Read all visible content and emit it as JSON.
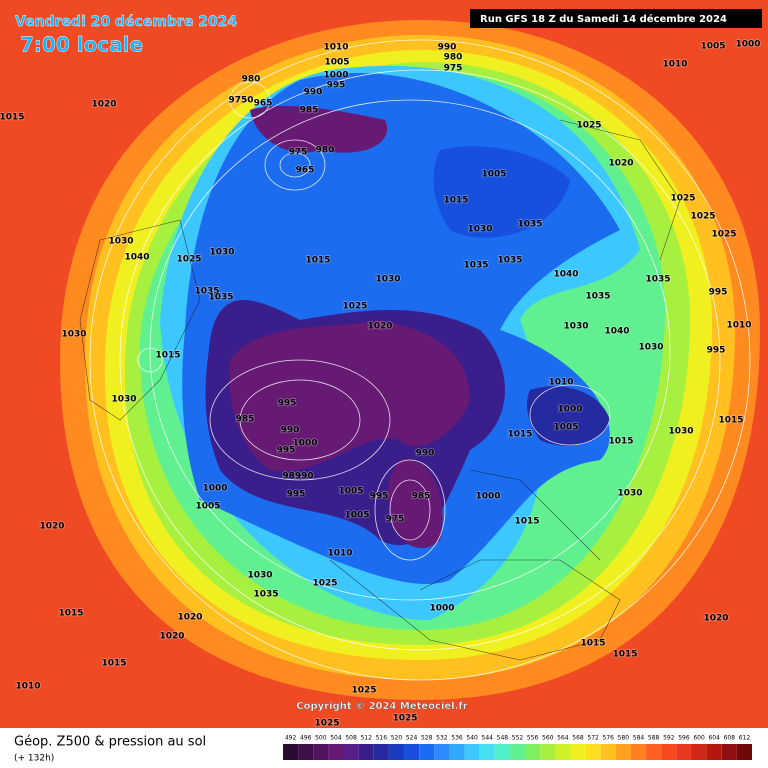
{
  "header": {
    "date": "Vendredi 20 décembre 2024",
    "time": "7:00 locale",
    "run": "Run GFS 18 Z du Samedi 14 décembre 2024"
  },
  "footer": {
    "title": "Géop. Z500 & pression au sol",
    "lead": "(+ 132h)",
    "copyright": "Copyright © 2024 Meteociel.fr"
  },
  "legend": {
    "values": [
      492,
      496,
      500,
      504,
      508,
      512,
      516,
      520,
      524,
      528,
      532,
      536,
      540,
      544,
      548,
      552,
      556,
      560,
      564,
      568,
      572,
      576,
      580,
      584,
      588,
      592,
      596,
      600,
      604,
      608,
      612
    ],
    "colors": [
      "#2b0b33",
      "#3d1048",
      "#52145e",
      "#661a73",
      "#5a1f86",
      "#3a1e8c",
      "#262aa0",
      "#1a3cc0",
      "#1650dc",
      "#1c6cf0",
      "#2a8cff",
      "#32a8ff",
      "#3cc8ff",
      "#44e0f0",
      "#50f0c8",
      "#60f090",
      "#80f060",
      "#a8f040",
      "#d0f028",
      "#f0f020",
      "#ffe020",
      "#ffc020",
      "#ffa020",
      "#ff8020",
      "#ff6020",
      "#f84820",
      "#e83820",
      "#d02818",
      "#b01810",
      "#901010",
      "#700808"
    ]
  },
  "isobar_labels": [
    "1010",
    "1005",
    "1000",
    "995",
    "990",
    "985",
    "980",
    "975",
    "980",
    "965",
    "9750",
    "965",
    "990",
    "980",
    "975",
    "1005",
    "1000",
    "1010",
    "1020",
    "1015",
    "1025",
    "1020",
    "1005",
    "1015",
    "1025",
    "1025",
    "1025",
    "1030",
    "1035",
    "1030",
    "1040",
    "1030",
    "1025",
    "1015",
    "1030",
    "1035",
    "1035",
    "1040",
    "1035",
    "1035",
    "1035",
    "1035",
    "995",
    "1025",
    "1020",
    "1030",
    "1015",
    "1030",
    "1040",
    "1030",
    "995",
    "1010",
    "1030",
    "1010",
    "995",
    "985",
    "990",
    "1000",
    "995",
    "1000",
    "1005",
    "1015",
    "1015",
    "1030",
    "1015",
    "990",
    "98990",
    "995",
    "1000",
    "1005",
    "1005",
    "995",
    "985",
    "1000",
    "1030",
    "975",
    "1005",
    "1015",
    "1020",
    "1010",
    "1030",
    "1025",
    "1035",
    "1015",
    "1020",
    "1020",
    "1000",
    "1020",
    "1015",
    "1015",
    "1015",
    "1010",
    "1025",
    "1025",
    "1025"
  ]
}
